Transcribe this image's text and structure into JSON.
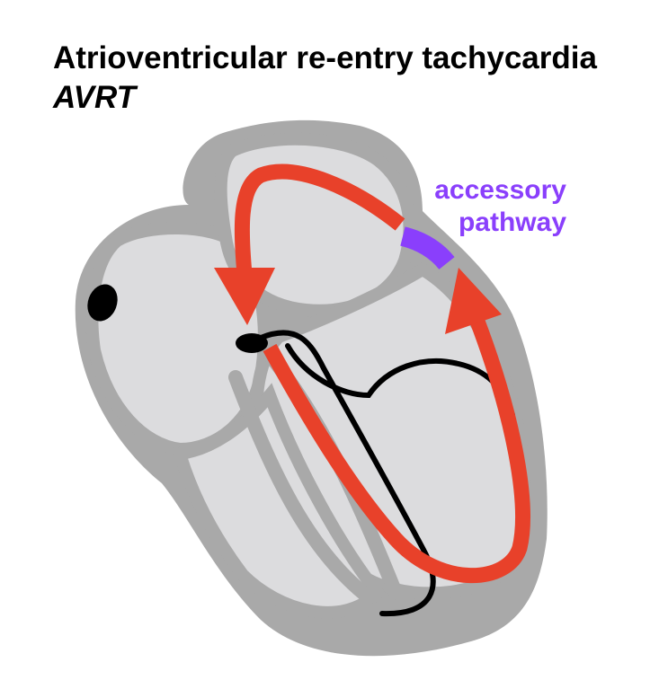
{
  "title": "Atrioventricular re-entry tachycardia",
  "subtitle": "AVRT",
  "labels": {
    "accessory_line1": "accessory",
    "accessory_line2": "pathway"
  },
  "colors": {
    "heart_outer": "#a9a9a9",
    "heart_inner": "#dcdcde",
    "circuit": "#e8412a",
    "accessory": "#8a3ffc",
    "conduction": "#000000"
  }
}
